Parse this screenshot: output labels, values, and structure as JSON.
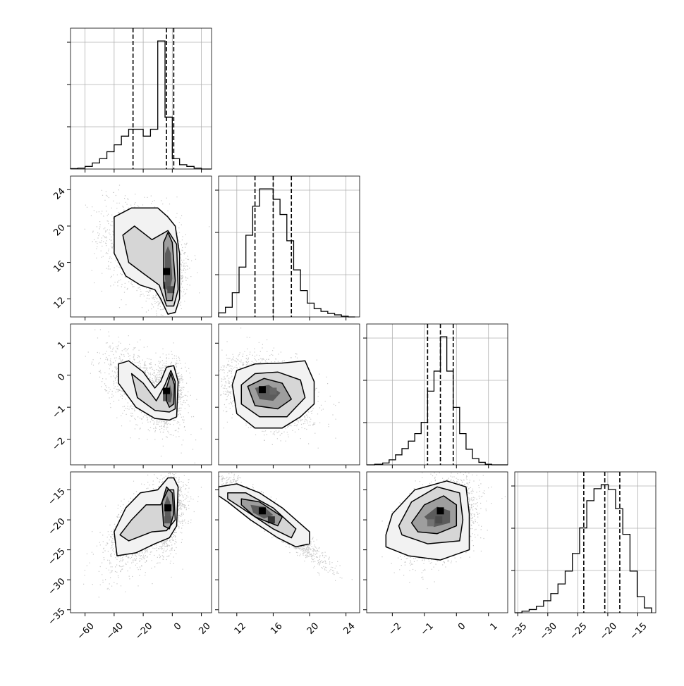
{
  "colors": {
    "axis": "#000000",
    "grid": "#b0b0b0",
    "scatter": "#000000",
    "background": "#ffffff"
  },
  "chart_data": {
    "type": "corner",
    "parameters": [
      {
        "index": 0,
        "range": [
          -70,
          27
        ],
        "ticks": [
          -60,
          -40,
          -20,
          0,
          20
        ],
        "tick_labels": [
          "−60",
          "−40",
          "−20",
          "0",
          "20"
        ],
        "quantiles": [
          -27,
          -4,
          1
        ]
      },
      {
        "index": 1,
        "range": [
          10,
          25.5
        ],
        "ticks": [
          12,
          16,
          20,
          24
        ],
        "tick_labels": [
          "12",
          "16",
          "20",
          "24"
        ],
        "quantiles": [
          14,
          16,
          18
        ]
      },
      {
        "index": 2,
        "range": [
          -2.8,
          1.6
        ],
        "ticks": [
          -2,
          -1,
          0,
          1
        ],
        "tick_labels": [
          "−2",
          "−1",
          "0",
          "1"
        ],
        "quantiles": [
          -0.9,
          -0.5,
          -0.1
        ]
      },
      {
        "index": 3,
        "range": [
          -35.5,
          -12
        ],
        "ticks": [
          -35,
          -30,
          -25,
          -20,
          -15
        ],
        "tick_labels": [
          "−35",
          "−30",
          "−25",
          "−20",
          "−15"
        ],
        "quantiles": [
          -24,
          -20.5,
          -18
        ]
      }
    ],
    "histograms": [
      {
        "param": 0,
        "bins": [
          -70,
          -65,
          -60,
          -55,
          -50,
          -45,
          -40,
          -35,
          -30,
          -25,
          -20,
          -15,
          -10,
          -5,
          0,
          5,
          10,
          15,
          20,
          27
        ],
        "counts": [
          0.5,
          1,
          3,
          7,
          12,
          20,
          28,
          38,
          46,
          46,
          38,
          46,
          148,
          60,
          12,
          5,
          3,
          1,
          0
        ]
      },
      {
        "param": 1,
        "bins": [
          10,
          10.75,
          11.5,
          12.25,
          13,
          13.75,
          14.5,
          15.25,
          16,
          16.75,
          17.5,
          18.25,
          19,
          19.75,
          20.5,
          21.25,
          22,
          22.75,
          23.5,
          24.25,
          25
        ],
        "counts": [
          6,
          14,
          35,
          72,
          118,
          160,
          185,
          185,
          170,
          148,
          110,
          68,
          38,
          20,
          12,
          8,
          5,
          3,
          1,
          0
        ]
      },
      {
        "param": 2,
        "bins": [
          -2.8,
          -2.55,
          -2.3,
          -2.1,
          -1.9,
          -1.7,
          -1.5,
          -1.3,
          -1.1,
          -0.9,
          -0.7,
          -0.5,
          -0.3,
          -0.1,
          0.1,
          0.3,
          0.5,
          0.7,
          0.9,
          1.1,
          1.6
        ],
        "counts": [
          0,
          1,
          3,
          8,
          16,
          26,
          38,
          50,
          68,
          118,
          150,
          205,
          150,
          92,
          50,
          25,
          10,
          4,
          1,
          0
        ]
      },
      {
        "param": 3,
        "bins": [
          -35.5,
          -34.3,
          -33.1,
          -31.9,
          -30.7,
          -29.5,
          -28.3,
          -27.1,
          -25.9,
          -24.7,
          -23.5,
          -22.3,
          -21.1,
          -19.9,
          -18.7,
          -17.5,
          -16.3,
          -15.1,
          -13.9,
          -12.7
        ],
        "counts": [
          0,
          2,
          4,
          8,
          15,
          24,
          36,
          52,
          74,
          106,
          140,
          155,
          160,
          154,
          130,
          98,
          52,
          20,
          6
        ]
      }
    ],
    "pairs": [
      {
        "x": 0,
        "y": 1
      },
      {
        "x": 0,
        "y": 2
      },
      {
        "x": 1,
        "y": 2
      },
      {
        "x": 0,
        "y": 3
      },
      {
        "x": 1,
        "y": 3
      },
      {
        "x": 2,
        "y": 3
      }
    ]
  }
}
